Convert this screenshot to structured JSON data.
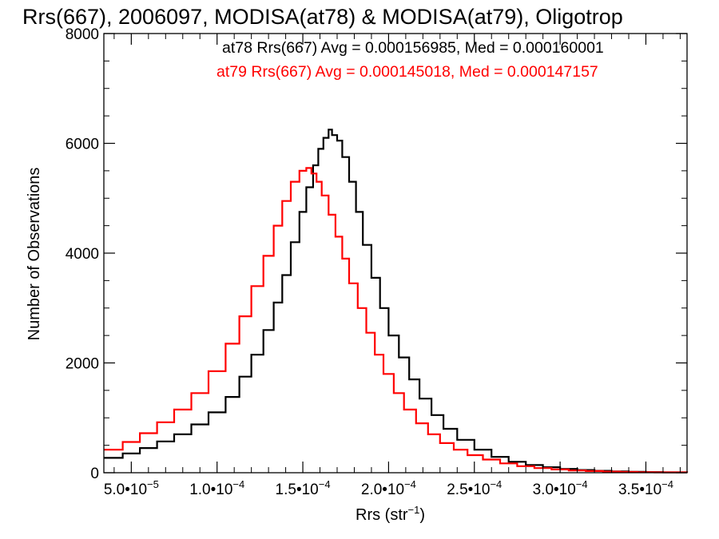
{
  "chart_data": {
    "type": "line",
    "title": "Rrs(667), 2006097, MODISA(at78) & MODISA(at79), Oligotrop",
    "xlabel": "Rrs (str",
    "xlabel_sup": "−1",
    "xlabel_close": ")",
    "ylabel": "Number of Observations",
    "xlim": [
      3.4e-05,
      0.000374
    ],
    "ylim": [
      0,
      8000
    ],
    "grid": false,
    "legend_position": "top-right",
    "x_ticks": [
      {
        "mant": "5.0•10",
        "exp": "−5",
        "value": 5e-05
      },
      {
        "mant": "1.0•10",
        "exp": "−4",
        "value": 0.0001
      },
      {
        "mant": "1.5•10",
        "exp": "−4",
        "value": 0.00015
      },
      {
        "mant": "2.0•10",
        "exp": "−4",
        "value": 0.0002
      },
      {
        "mant": "2.5•10",
        "exp": "−4",
        "value": 0.00025
      },
      {
        "mant": "3.0•10",
        "exp": "−4",
        "value": 0.0003
      },
      {
        "mant": "3.5•10",
        "exp": "−4",
        "value": 0.00035
      }
    ],
    "y_ticks": [
      {
        "label": "0",
        "value": 0
      },
      {
        "label": "2000",
        "value": 2000
      },
      {
        "label": "4000",
        "value": 4000
      },
      {
        "label": "6000",
        "value": 6000
      },
      {
        "label": "8000",
        "value": 8000
      }
    ],
    "series": [
      {
        "legend": "at78 Rrs(667) Avg = 0.000156985, Med = 0.000160001",
        "color": "#000000",
        "points": [
          [
            3.4e-05,
            270
          ],
          [
            4.5e-05,
            350
          ],
          [
            5.5e-05,
            450
          ],
          [
            6.5e-05,
            570
          ],
          [
            7.5e-05,
            700
          ],
          [
            8.5e-05,
            880
          ],
          [
            9.5e-05,
            1100
          ],
          [
            0.000105,
            1380
          ],
          [
            0.000113,
            1750
          ],
          [
            0.00012,
            2150
          ],
          [
            0.000127,
            2600
          ],
          [
            0.000133,
            3100
          ],
          [
            0.000138,
            3600
          ],
          [
            0.000143,
            4200
          ],
          [
            0.000148,
            4750
          ],
          [
            0.000152,
            5200
          ],
          [
            0.000156,
            5600
          ],
          [
            0.000159,
            5900
          ],
          [
            0.000162,
            6100
          ],
          [
            0.000165,
            6250
          ],
          [
            0.000167,
            6150
          ],
          [
            0.00017,
            6050
          ],
          [
            0.000173,
            5750
          ],
          [
            0.000177,
            5300
          ],
          [
            0.000181,
            4750
          ],
          [
            0.000185,
            4150
          ],
          [
            0.00019,
            3550
          ],
          [
            0.000195,
            3000
          ],
          [
            0.0002,
            2500
          ],
          [
            0.000206,
            2100
          ],
          [
            0.000212,
            1700
          ],
          [
            0.000218,
            1350
          ],
          [
            0.000225,
            1050
          ],
          [
            0.000232,
            800
          ],
          [
            0.00024,
            600
          ],
          [
            0.00025,
            420
          ],
          [
            0.00026,
            290
          ],
          [
            0.00027,
            200
          ],
          [
            0.00028,
            140
          ],
          [
            0.00029,
            100
          ],
          [
            0.0003,
            70
          ],
          [
            0.00031,
            50
          ],
          [
            0.00032,
            35
          ],
          [
            0.00033,
            25
          ],
          [
            0.00034,
            18
          ],
          [
            0.00035,
            12
          ],
          [
            0.00036,
            8
          ],
          [
            0.000374,
            5
          ]
        ]
      },
      {
        "legend": "at79 Rrs(667) Avg = 0.000145018, Med = 0.000147157",
        "color": "#ff0000",
        "points": [
          [
            3.4e-05,
            420
          ],
          [
            4.5e-05,
            560
          ],
          [
            5.5e-05,
            720
          ],
          [
            6.5e-05,
            920
          ],
          [
            7.5e-05,
            1150
          ],
          [
            8.5e-05,
            1450
          ],
          [
            9.5e-05,
            1850
          ],
          [
            0.000105,
            2350
          ],
          [
            0.000113,
            2850
          ],
          [
            0.00012,
            3400
          ],
          [
            0.000127,
            3950
          ],
          [
            0.000133,
            4500
          ],
          [
            0.000138,
            4950
          ],
          [
            0.000143,
            5300
          ],
          [
            0.000148,
            5500
          ],
          [
            0.000152,
            5550
          ],
          [
            0.000155,
            5450
          ],
          [
            0.000158,
            5300
          ],
          [
            0.000161,
            5050
          ],
          [
            0.000165,
            4700
          ],
          [
            0.000169,
            4300
          ],
          [
            0.000173,
            3900
          ],
          [
            0.000177,
            3450
          ],
          [
            0.000182,
            3000
          ],
          [
            0.000187,
            2550
          ],
          [
            0.000192,
            2150
          ],
          [
            0.000197,
            1800
          ],
          [
            0.000203,
            1450
          ],
          [
            0.000209,
            1150
          ],
          [
            0.000216,
            900
          ],
          [
            0.000223,
            700
          ],
          [
            0.00023,
            540
          ],
          [
            0.000238,
            420
          ],
          [
            0.000246,
            320
          ],
          [
            0.000255,
            240
          ],
          [
            0.000265,
            170
          ],
          [
            0.000275,
            120
          ],
          [
            0.000285,
            85
          ],
          [
            0.000295,
            60
          ],
          [
            0.000305,
            42
          ],
          [
            0.000315,
            30
          ],
          [
            0.000325,
            21
          ],
          [
            0.000335,
            15
          ],
          [
            0.000345,
            10
          ],
          [
            0.000355,
            7
          ],
          [
            0.000374,
            4
          ]
        ]
      }
    ]
  }
}
